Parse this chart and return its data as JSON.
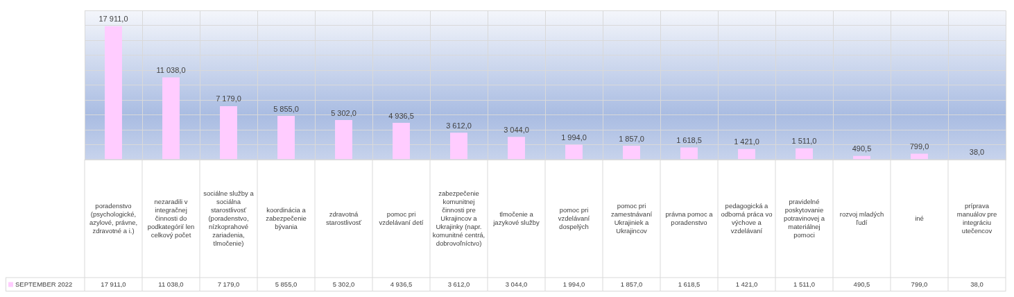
{
  "chart_data": {
    "type": "bar",
    "categories": [
      "poradenstvo (psychologické, azylové, právne, zdravotné a i.)",
      "nezaradili v integračnej činnosti do podkategórií len celkový počet",
      "sociálne služby a sociálna starostlivosť (poradenstvo, nízkoprahové zariadenia, tlmočenie)",
      "koordinácia a zabezpečenie bývania",
      "zdravotná starostlivosť",
      "pomoc pri vzdelávaní detí",
      "zabezpečenie komunitnej činnosti pre Ukrajincov a Ukrajinky (napr. komunitné centrá, dobrovoľníctvo)",
      "tlmočenie a jazykové služby",
      "pomoc pri vzdelávaní dospelých",
      "pomoc pri zamestnávaní Ukrajiniek a Ukrajincov",
      "právna pomoc a poradenstvo",
      "pedagogická a odborná práca vo výchove a vzdelávaní",
      "pravidelné poskytovanie potravinovej a materiálnej pomoci",
      "rozvoj mladých ľudí",
      "iné",
      "príprava manuálov pre integráciu utečencov"
    ],
    "series": [
      {
        "name": "SEPTEMBER 2022",
        "color": "#ffccff",
        "values": [
          17911,
          11038,
          7179,
          5855,
          5302,
          4936.5,
          3612,
          3044,
          1994,
          1857,
          1618.5,
          1421,
          1511,
          490.5,
          799,
          38
        ],
        "value_labels": [
          "17 911,0",
          "11 038,0",
          "7 179,0",
          "5 855,0",
          "5 302,0",
          "4 936,5",
          "3 612,0",
          "3 044,0",
          "1 994,0",
          "1 857,0",
          "1 618,5",
          "1 421,0",
          "1 511,0",
          "490,5",
          "799,0",
          "38,0"
        ]
      }
    ],
    "ylim": [
      0,
      20000
    ],
    "yticks": [
      {
        "value": 0,
        "label": null
      },
      {
        "value": 2000,
        "label": null
      },
      {
        "value": 4000,
        "label": null
      },
      {
        "value": 6000,
        "label": null
      },
      {
        "value": 8000,
        "label": null
      },
      {
        "value": 10000,
        "label": null
      },
      {
        "value": 12000,
        "label": null
      },
      {
        "value": 14000,
        "label": null
      },
      {
        "value": 16000,
        "label": null
      },
      {
        "value": 18000,
        "label": null
      },
      {
        "value": 20000,
        "label": null
      }
    ],
    "grid": true,
    "legend": "bottom left"
  }
}
